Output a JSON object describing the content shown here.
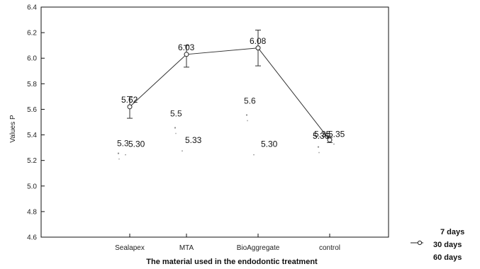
{
  "chart_data": {
    "type": "line",
    "xlabel": "The material used in the endodontic treatment",
    "ylabel": "Values P",
    "categories": [
      "Sealapex",
      "MTA",
      "BioAggregate",
      "control"
    ],
    "ylim": [
      4.6,
      6.4
    ],
    "yticks": [
      "6.4",
      "6.2",
      "6.0",
      "5.8",
      "5.6",
      "5.4",
      "5.2",
      "5.0",
      "4.8",
      "4.6"
    ],
    "ytick_values": [
      6.4,
      6.2,
      6.0,
      5.8,
      5.6,
      5.4,
      5.2,
      5.0,
      4.8,
      4.6
    ],
    "legend_position": "bottom-right",
    "series": [
      {
        "name": "7 days",
        "values": [
          5.3,
          5.5,
          5.6,
          5.35
        ],
        "labels": [
          "5.3",
          "5.5",
          "5.6",
          "5.35"
        ]
      },
      {
        "name": "30 days",
        "values": [
          5.62,
          6.03,
          6.08,
          5.36
        ],
        "labels": [
          "5.62",
          "6.03",
          "6.08",
          "5.36"
        ],
        "error_high": [
          5.7,
          6.1,
          6.22,
          5.38
        ],
        "error_low": [
          5.53,
          5.93,
          5.94,
          5.34
        ]
      },
      {
        "name": "60 days",
        "values": [
          5.3,
          5.33,
          5.3,
          5.35
        ],
        "labels": [
          "5.30",
          "5.33",
          "5.30",
          "5.35"
        ]
      }
    ],
    "colors": {
      "line": "#333333",
      "text": "#111111"
    }
  }
}
